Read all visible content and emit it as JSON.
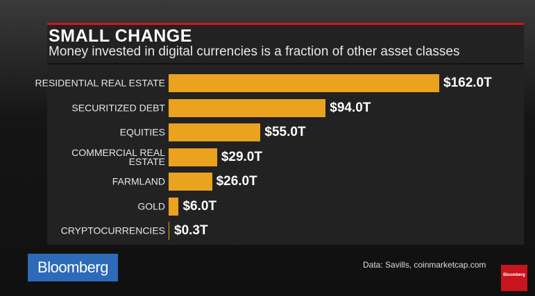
{
  "chart_data": {
    "type": "bar",
    "orientation": "horizontal",
    "title": "SMALL CHANGE",
    "subtitle": "Money invested in digital currencies is a fraction of other asset classes",
    "categories": [
      "RESIDENTIAL REAL ESTATE",
      "SECURITIZED DEBT",
      "EQUITIES",
      "COMMERCIAL REAL ESTATE",
      "FARMLAND",
      "GOLD",
      "CRYPTOCURRENCIES"
    ],
    "values": [
      162.0,
      94.0,
      55.0,
      29.0,
      26.0,
      6.0,
      0.3
    ],
    "value_labels": [
      "$162.0T",
      "$94.0T",
      "$55.0T",
      "$29.0T",
      "$26.0T",
      "$6.0T",
      "$0.3T"
    ],
    "color": "#eba21f",
    "source": "Data: Savills, coinmarketcap.com"
  },
  "brand": "Bloomberg"
}
